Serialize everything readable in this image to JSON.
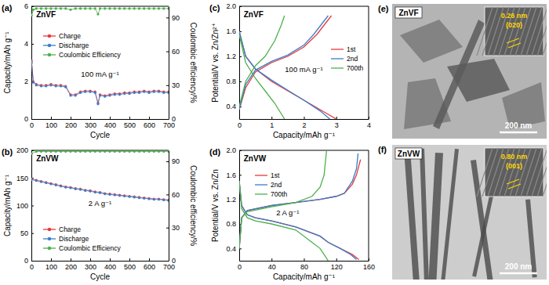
{
  "chart_data": [
    {
      "panel": "(a)",
      "type": "line",
      "xlabel": "Cycle",
      "ylabel": "Capacity/mAh g⁻¹",
      "y2label": "Coulombic efficiency/%",
      "annotations": [
        "ZnVF",
        "100 mA g⁻¹"
      ],
      "xlim": [
        0,
        700
      ],
      "xticks": [
        0,
        100,
        200,
        300,
        400,
        500,
        600,
        700
      ],
      "ylim": [
        0,
        6
      ],
      "yticks": [
        0,
        2,
        4,
        6
      ],
      "y2lim": [
        0,
        100
      ],
      "y2ticks": [
        0,
        30,
        60,
        90
      ],
      "legend": "upper left",
      "series": [
        {
          "name": "Charge",
          "color": "#e8383d",
          "marker": "circle",
          "x": [
            1,
            10,
            25,
            50,
            75,
            100,
            125,
            150,
            175,
            200,
            225,
            250,
            275,
            300,
            325,
            340,
            350,
            375,
            400,
            425,
            450,
            475,
            500,
            525,
            550,
            575,
            600,
            625,
            650,
            675,
            700
          ],
          "values": [
            3.1,
            2.0,
            1.85,
            1.8,
            1.8,
            1.85,
            1.8,
            1.8,
            1.75,
            1.3,
            1.3,
            1.45,
            1.5,
            1.5,
            1.45,
            0.85,
            1.3,
            1.25,
            1.3,
            1.35,
            1.35,
            1.4,
            1.4,
            1.45,
            1.45,
            1.5,
            1.45,
            1.5,
            1.5,
            1.45,
            1.45
          ]
        },
        {
          "name": "Discharge",
          "color": "#3a7dc9",
          "marker": "circle",
          "x": [
            1,
            10,
            25,
            50,
            75,
            100,
            125,
            150,
            175,
            200,
            225,
            250,
            275,
            300,
            325,
            340,
            350,
            375,
            400,
            425,
            450,
            475,
            500,
            525,
            550,
            575,
            600,
            625,
            650,
            675,
            700
          ],
          "values": [
            3.0,
            1.95,
            1.8,
            1.75,
            1.75,
            1.8,
            1.75,
            1.75,
            1.7,
            1.25,
            1.25,
            1.4,
            1.45,
            1.45,
            1.4,
            0.8,
            1.25,
            1.2,
            1.25,
            1.3,
            1.3,
            1.35,
            1.35,
            1.4,
            1.4,
            1.45,
            1.4,
            1.45,
            1.45,
            1.4,
            1.4
          ]
        },
        {
          "name": "Coulombic Efficiency",
          "color": "#4cb04c",
          "marker": "circle",
          "axis": "y2",
          "x": [
            1,
            10,
            25,
            50,
            75,
            100,
            125,
            150,
            175,
            200,
            225,
            250,
            275,
            300,
            325,
            340,
            350,
            375,
            400,
            425,
            450,
            475,
            500,
            525,
            550,
            575,
            600,
            625,
            650,
            675,
            700
          ],
          "values": [
            92,
            97,
            98,
            98,
            98,
            98,
            98,
            98,
            98,
            97,
            98,
            98,
            98,
            98,
            98,
            93,
            98,
            98,
            98,
            98,
            98,
            98,
            98,
            98,
            98,
            98,
            98,
            98,
            98,
            98,
            98
          ]
        }
      ]
    },
    {
      "panel": "(b)",
      "type": "line",
      "xlabel": "Cycle",
      "ylabel": "Capacity/mAh g⁻¹",
      "y2label": "Coulombic efficiency/%",
      "annotations": [
        "ZnVW",
        "2 A g⁻¹"
      ],
      "xlim": [
        0,
        700
      ],
      "xticks": [
        0,
        100,
        200,
        300,
        400,
        500,
        600,
        700
      ],
      "ylim": [
        0,
        200
      ],
      "yticks": [
        0,
        50,
        100,
        150,
        200
      ],
      "y2lim": [
        0,
        100
      ],
      "y2ticks": [
        0,
        30,
        60,
        90
      ],
      "legend": "lower left",
      "series": [
        {
          "name": "Charge",
          "color": "#e8383d",
          "marker": "circle",
          "x": [
            1,
            25,
            50,
            75,
            100,
            125,
            150,
            175,
            200,
            225,
            250,
            275,
            300,
            325,
            350,
            375,
            400,
            425,
            450,
            475,
            500,
            525,
            550,
            575,
            600,
            625,
            650,
            675,
            700
          ],
          "values": [
            148,
            146,
            144,
            142,
            140,
            138,
            136,
            134,
            133,
            131,
            130,
            128,
            127,
            125,
            124,
            122,
            121,
            120,
            119,
            118,
            117,
            116,
            115,
            114,
            113,
            112,
            112,
            111,
            110
          ]
        },
        {
          "name": "Discharge",
          "color": "#3a7dc9",
          "marker": "circle",
          "x": [
            1,
            25,
            50,
            75,
            100,
            125,
            150,
            175,
            200,
            225,
            250,
            275,
            300,
            325,
            350,
            375,
            400,
            425,
            450,
            475,
            500,
            525,
            550,
            575,
            600,
            625,
            650,
            675,
            700
          ],
          "values": [
            147,
            145,
            143,
            141,
            139,
            137,
            135,
            133,
            132,
            130,
            129,
            127,
            126,
            124,
            123,
            121,
            120,
            119,
            118,
            117,
            116,
            115,
            114,
            113,
            112,
            111,
            111,
            110,
            109
          ]
        },
        {
          "name": "Coulombic Efficiency",
          "color": "#4cb04c",
          "marker": "circle",
          "axis": "y2",
          "x": [
            1,
            25,
            50,
            75,
            100,
            125,
            150,
            175,
            200,
            225,
            250,
            275,
            300,
            325,
            350,
            375,
            400,
            425,
            450,
            475,
            500,
            525,
            550,
            575,
            600,
            625,
            650,
            675,
            700
          ],
          "values": [
            97,
            99,
            99,
            99,
            99,
            99,
            99,
            99,
            99,
            99,
            99,
            99,
            99,
            99,
            99,
            99,
            99,
            99,
            99,
            99,
            99,
            99,
            99,
            99,
            99,
            99,
            99,
            99,
            99
          ]
        }
      ]
    },
    {
      "panel": "(c)",
      "type": "line",
      "xlabel": "Capacity/mAh g⁻¹",
      "ylabel": "Potential/V vs. Zn/Zn²⁺",
      "annotations": [
        "ZnVF",
        "100 mA g⁻¹"
      ],
      "xlim": [
        0,
        4
      ],
      "xticks": [
        0,
        1,
        2,
        3,
        4
      ],
      "ylim": [
        0.2,
        2
      ],
      "yticks": [
        0.4,
        0.8,
        1.2,
        1.6,
        {
          "value": 2,
          "label": "2.0"
        }
      ],
      "legend": "right",
      "series": [
        {
          "name": "1st",
          "color": "#e8383d",
          "x": [
            0,
            0.2,
            0.5,
            1.0,
            1.5,
            2.0,
            2.4,
            2.7,
            2.85,
            null,
            0,
            0.2,
            0.5,
            1.0,
            1.5,
            2.0,
            2.5,
            3.0
          ],
          "values": [
            0.35,
            0.7,
            0.95,
            1.1,
            1.2,
            1.35,
            1.55,
            1.75,
            1.85,
            null,
            1.6,
            1.2,
            1.0,
            0.8,
            0.65,
            0.5,
            0.35,
            0.2
          ]
        },
        {
          "name": "2nd",
          "color": "#3a7dc9",
          "x": [
            0,
            0.2,
            0.5,
            1.0,
            1.5,
            2.0,
            2.3,
            2.6,
            2.75,
            null,
            0,
            0.2,
            0.5,
            1.0,
            1.5,
            2.0,
            2.5,
            2.8
          ],
          "values": [
            0.35,
            0.75,
            0.98,
            1.12,
            1.22,
            1.38,
            1.55,
            1.75,
            1.85,
            null,
            1.6,
            1.2,
            1.0,
            0.82,
            0.66,
            0.5,
            0.33,
            0.2
          ]
        },
        {
          "name": "700th",
          "color": "#4cb04c",
          "x": [
            0,
            0.2,
            0.5,
            0.8,
            1.1,
            1.3,
            1.4,
            null,
            0,
            0.2,
            0.5,
            0.8,
            1.1,
            1.4
          ],
          "values": [
            0.4,
            0.8,
            1.05,
            1.2,
            1.45,
            1.7,
            1.85,
            null,
            1.55,
            1.1,
            0.85,
            0.65,
            0.45,
            0.2
          ]
        }
      ]
    },
    {
      "panel": "(d)",
      "type": "line",
      "xlabel": "Capacity/mAh g⁻¹",
      "ylabel": "Potential/V vs. Zn/Zn",
      "annotations": [
        "ZnVW",
        "2 A g⁻¹"
      ],
      "xlim": [
        0,
        160
      ],
      "xticks": [
        0,
        40,
        80,
        120,
        160
      ],
      "ylim": [
        0.2,
        2
      ],
      "yticks": [
        0.4,
        0.8,
        1.2,
        1.6,
        {
          "value": 2,
          "label": "2.0"
        }
      ],
      "legend": "left",
      "series": [
        {
          "name": "1st",
          "color": "#e8383d",
          "x": [
            0,
            3,
            10,
            40,
            70,
            100,
            120,
            130,
            140,
            145,
            150,
            null,
            0,
            3,
            10,
            20,
            40,
            70,
            100,
            110,
            125,
            140,
            148
          ],
          "values": [
            0.4,
            0.9,
            1.02,
            1.1,
            1.15,
            1.2,
            1.25,
            1.3,
            1.45,
            1.6,
            1.85,
            null,
            1.5,
            1.1,
            0.95,
            0.9,
            0.85,
            0.75,
            0.6,
            0.5,
            0.4,
            0.3,
            0.22
          ]
        },
        {
          "name": "2nd",
          "color": "#3a7dc9",
          "x": [
            0,
            3,
            10,
            40,
            70,
            100,
            120,
            130,
            140,
            145,
            147,
            null,
            0,
            3,
            10,
            20,
            40,
            70,
            100,
            110,
            125,
            138,
            145
          ],
          "values": [
            0.4,
            0.9,
            1.02,
            1.1,
            1.15,
            1.2,
            1.25,
            1.3,
            1.5,
            1.7,
            1.95,
            null,
            1.5,
            1.1,
            0.95,
            0.9,
            0.85,
            0.75,
            0.6,
            0.5,
            0.4,
            0.3,
            0.22
          ]
        },
        {
          "name": "700th",
          "color": "#4cb04c",
          "x": [
            0,
            3,
            10,
            40,
            70,
            90,
            100,
            105,
            108,
            null,
            0,
            3,
            10,
            20,
            40,
            70,
            90,
            100,
            105,
            110
          ],
          "values": [
            0.4,
            0.9,
            1.0,
            1.08,
            1.15,
            1.25,
            1.4,
            1.6,
            2.0,
            null,
            1.5,
            1.05,
            0.9,
            0.85,
            0.8,
            0.7,
            0.5,
            0.4,
            0.3,
            0.2
          ]
        }
      ]
    }
  ],
  "images": [
    {
      "panel": "(e)",
      "sample": "ZnVF",
      "spacing": "0.26 nm",
      "plane": "(020)",
      "scale_bar": "200 nm"
    },
    {
      "panel": "(f)",
      "sample": "ZnVW",
      "spacing": "0.80 nm",
      "plane": "(001)",
      "scale_bar": "200 nm"
    }
  ]
}
